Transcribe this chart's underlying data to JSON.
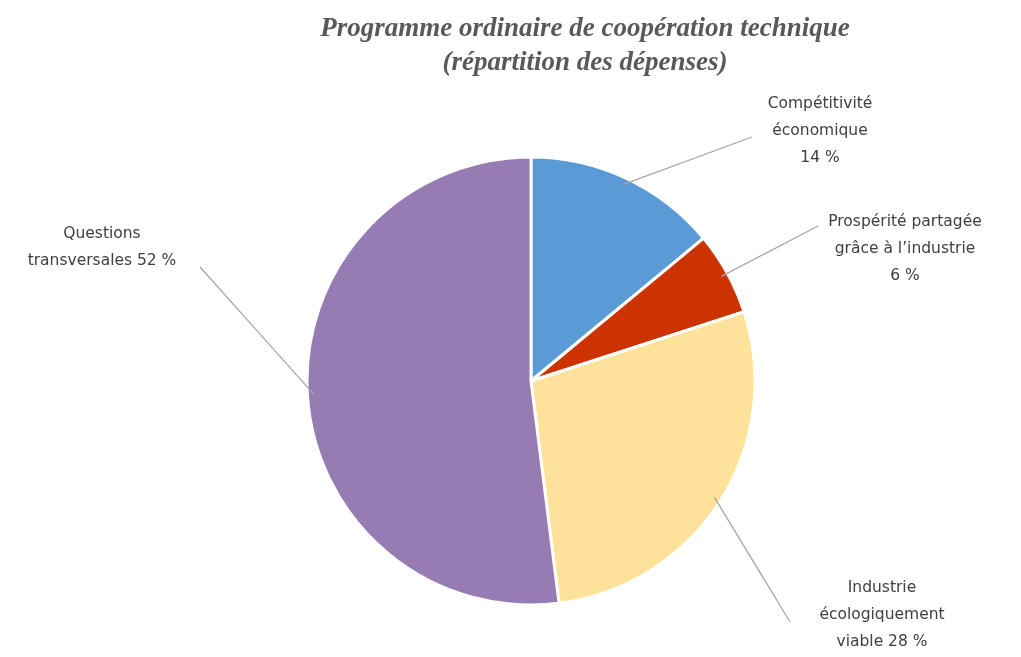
{
  "chart_data": {
    "type": "pie",
    "title": "Programme ordinaire de coopération technique (répartition des dépenses)",
    "categories": [
      "Compétitivité économique",
      "Prospérité partagée grâce à l’industrie",
      "Industrie écologiquement viable",
      "Questions transversales"
    ],
    "values": [
      14,
      6,
      28,
      52
    ],
    "value_labels": [
      "14 %",
      "6 %",
      "28 %",
      "52 %"
    ],
    "colors": [
      "#5b9bd5",
      "#cc3300",
      "#ffe29a",
      "#977bb3"
    ]
  }
}
